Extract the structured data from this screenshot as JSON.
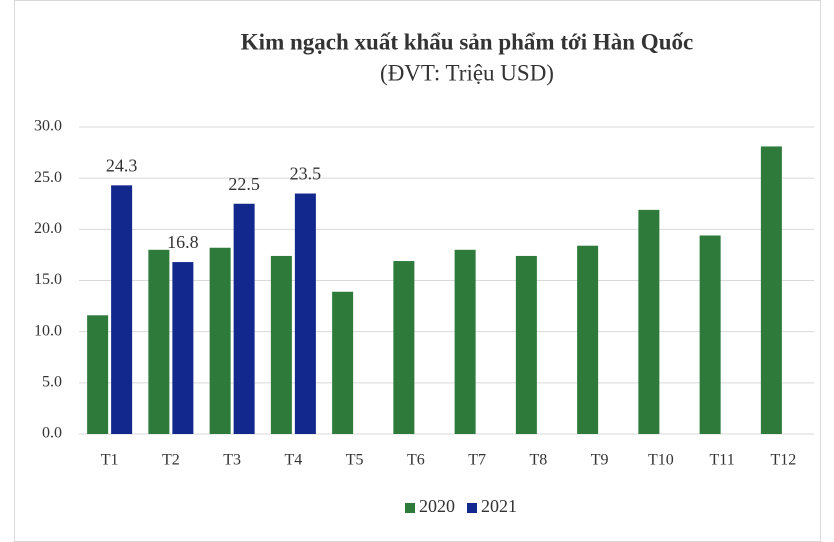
{
  "chart_data": {
    "type": "bar",
    "title": "Kim ngạch xuất khẩu sản phẩm tới Hàn Quốc",
    "subtitle": "(ĐVT: Triệu USD)",
    "categories": [
      "T1",
      "T2",
      "T3",
      "T4",
      "T5",
      "T6",
      "T7",
      "T8",
      "T9",
      "T10",
      "T11",
      "T12"
    ],
    "series": [
      {
        "name": "2020",
        "color": "#2e7a3b",
        "data_labels": false,
        "values": [
          11.6,
          18.0,
          18.2,
          17.4,
          13.9,
          16.9,
          18.0,
          17.4,
          18.4,
          21.9,
          19.4,
          28.1
        ]
      },
      {
        "name": "2021",
        "color": "#12288c",
        "data_labels": true,
        "values": [
          24.3,
          16.8,
          22.5,
          23.5,
          null,
          null,
          null,
          null,
          null,
          null,
          null,
          null
        ]
      }
    ],
    "ylim": [
      0,
      30
    ],
    "yticks": [
      {
        "value": 0,
        "label": "0.0"
      },
      {
        "value": 5,
        "label": "5.0"
      },
      {
        "value": 10,
        "label": "10.0"
      },
      {
        "value": 15,
        "label": "15.0"
      },
      {
        "value": 20,
        "label": "20.0"
      },
      {
        "value": 25,
        "label": "25.0"
      },
      {
        "value": 30,
        "label": "30.0"
      }
    ],
    "grid": true,
    "legend": "bottom"
  }
}
